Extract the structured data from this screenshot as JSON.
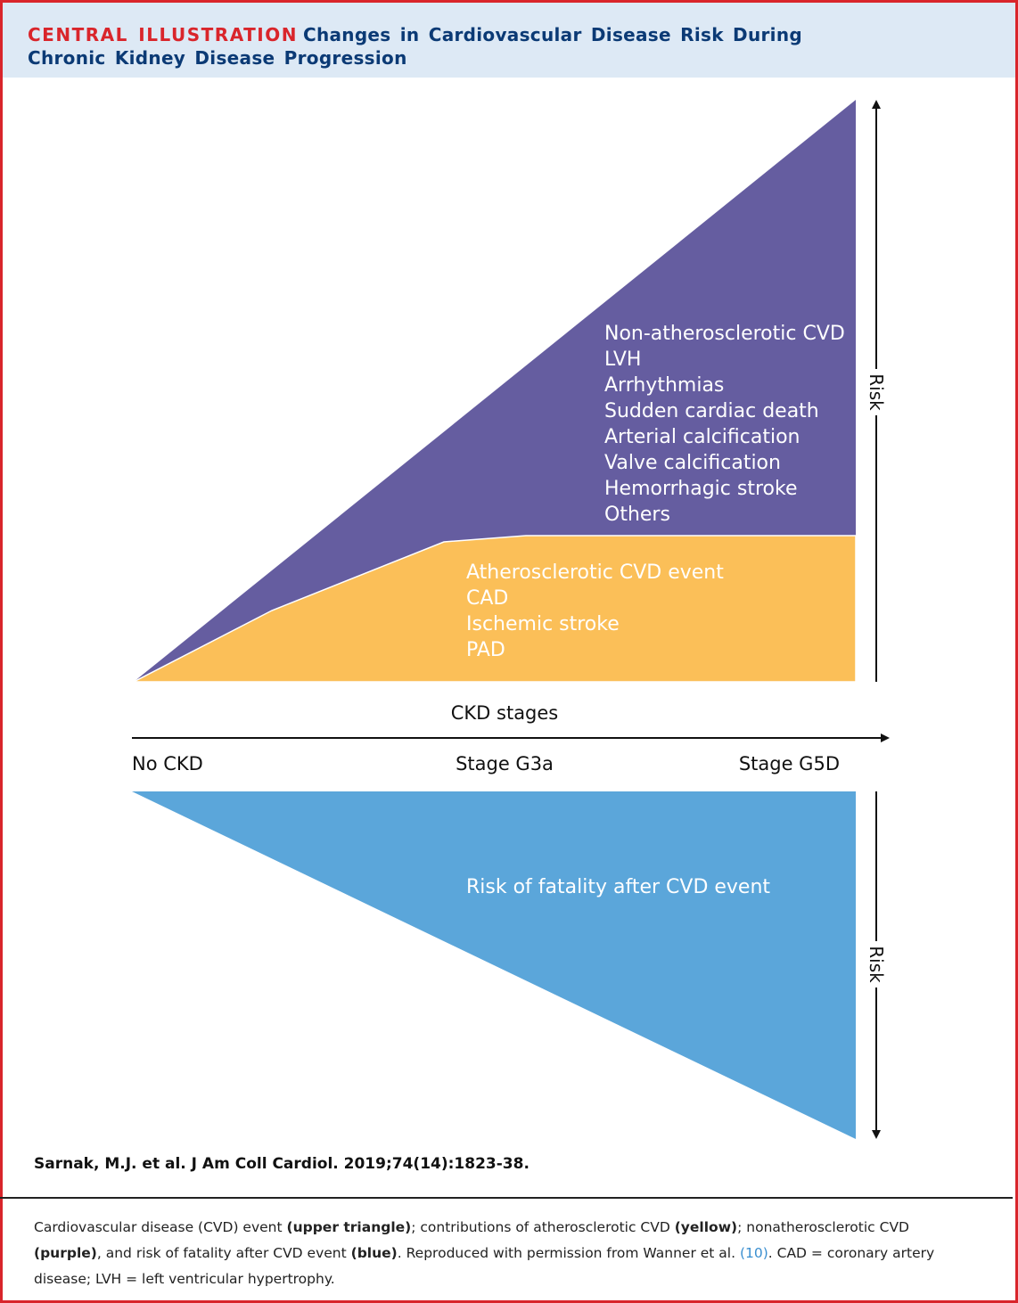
{
  "header": {
    "label": "CENTRAL ILLUSTRATION",
    "title": "Changes in Cardiovascular Disease Risk During Chronic Kidney Disease Progression"
  },
  "diagram": {
    "nonatherosclerotic": [
      "Non-atherosclerotic CVD",
      "LVH",
      "Arrhythmias",
      "Sudden cardiac death",
      "Arterial calcification",
      "Valve calcification",
      "Hemorrhagic stroke",
      "Others"
    ],
    "atherosclerotic": [
      "Atherosclerotic CVD event",
      "CAD",
      "Ischemic stroke",
      "PAD"
    ],
    "fatality": "Risk of fatality after CVD event",
    "axis_label": "CKD stages",
    "stages": [
      "No CKD",
      "Stage G3a",
      "Stage G5D"
    ],
    "risk_labels": [
      "Risk",
      "Risk"
    ]
  },
  "citation": "Sarnak, M.J. et al. J Am Coll Cardiol. 2019;74(14):1823-38.",
  "caption": [
    "Cardiovascular disease (CVD) event ",
    "(upper triangle)",
    "; contributions of atherosclerotic CVD ",
    "(yellow)",
    "; nonatherosclerotic CVD ",
    "(purple)",
    ", and risk of fatality after CVD event ",
    "(blue)",
    ". Reproduced with permission from Wanner et al. ",
    "(10)",
    ". CAD = coronary artery disease; LVH = left ventricular hypertrophy."
  ]
}
